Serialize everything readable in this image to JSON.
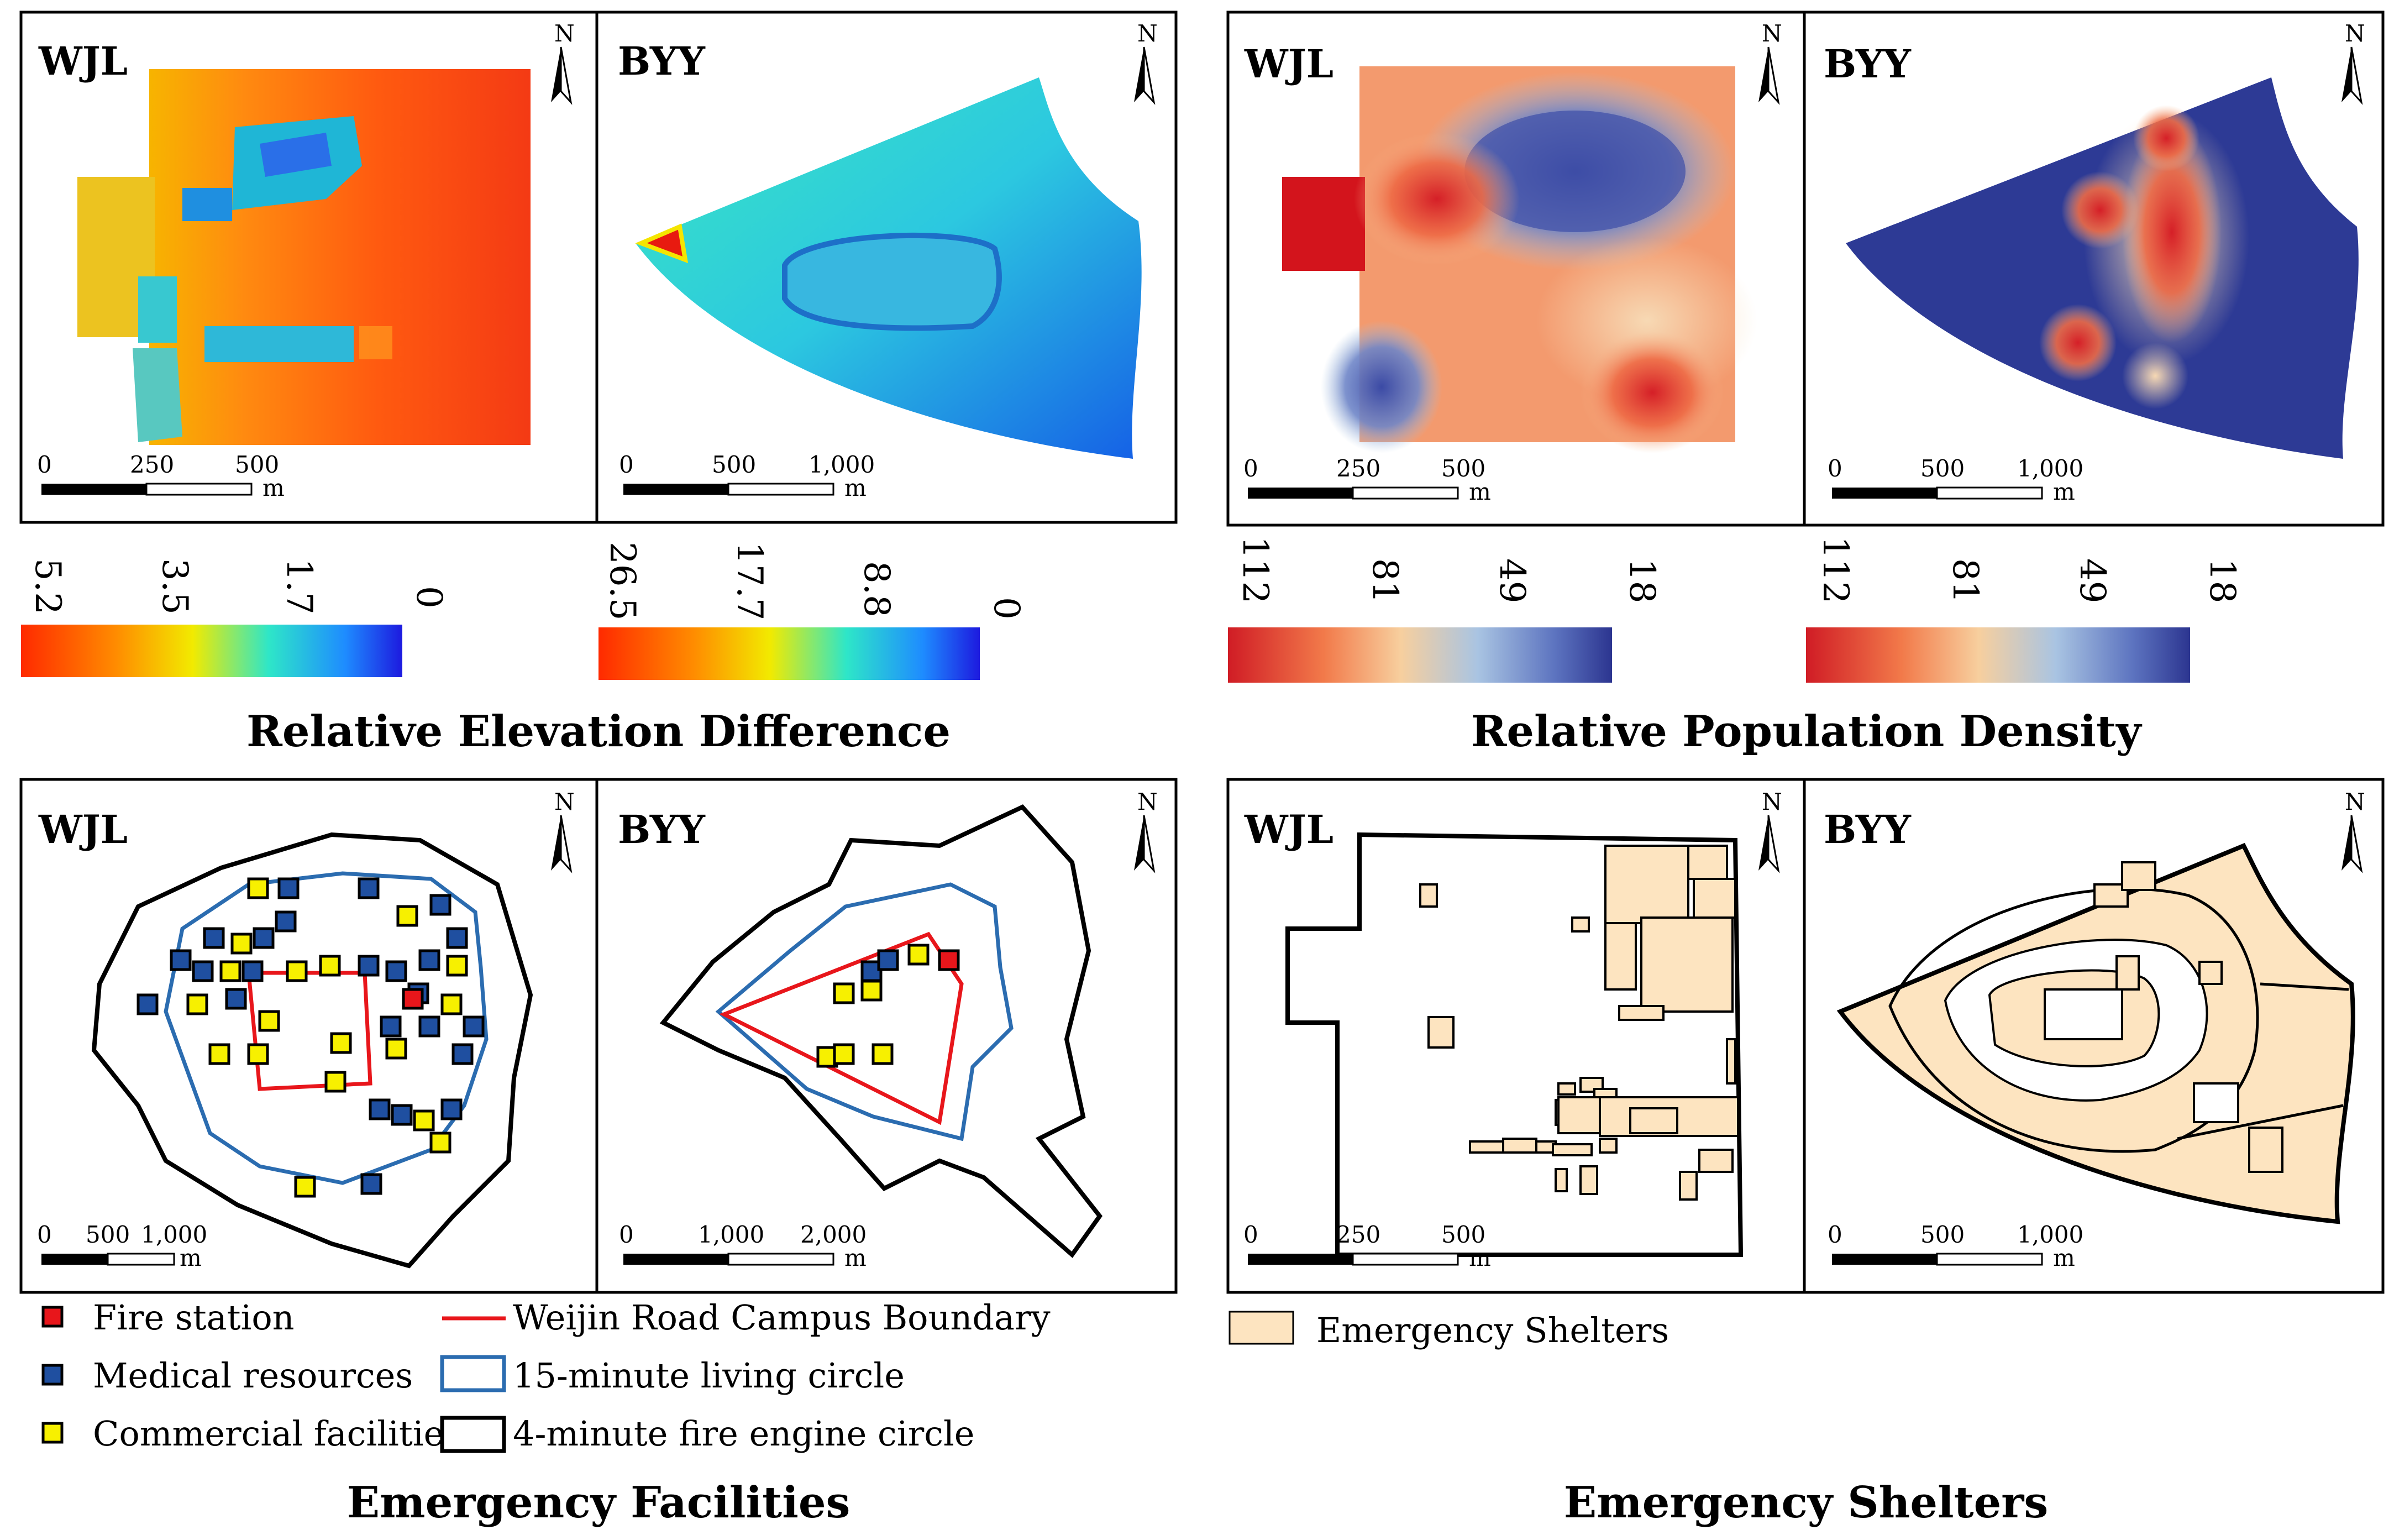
{
  "sites": {
    "a": "WJL",
    "b": "BYY"
  },
  "north": "N",
  "scale_unit": "m",
  "scales": {
    "elev_wjl": [
      "0",
      "250",
      "500"
    ],
    "elev_byy": [
      "0",
      "500",
      "1,000"
    ],
    "pop_wjl": [
      "0",
      "250",
      "500"
    ],
    "pop_byy": [
      "0",
      "500",
      "1,000"
    ],
    "fac_wjl": [
      "0",
      "500",
      "1,000"
    ],
    "fac_byy": [
      "0",
      "1,000",
      "2,000"
    ],
    "shel_wjl": [
      "0",
      "250",
      "500"
    ],
    "shel_byy": [
      "0",
      "500",
      "1,000"
    ]
  },
  "colorbars": {
    "elev_wjl": [
      "5.2",
      "3.5",
      "1.7",
      "0"
    ],
    "elev_byy": [
      "26.5",
      "17.7",
      "8.8",
      "0"
    ],
    "pop_wjl": [
      "112",
      "81",
      "49",
      "18"
    ],
    "pop_byy": [
      "112",
      "81",
      "49",
      "18"
    ]
  },
  "titles": {
    "elevation": "Relative Elevation Difference",
    "population": "Relative Population Density",
    "facilities": "Emergency Facilities",
    "shelters": "Emergency Shelters"
  },
  "legend": {
    "fire_station": "Fire station",
    "medical": "Medical resources",
    "commercial": "Commercial facilities",
    "campus": "Weijin Road Campus Boundary",
    "living15": "15-minute living circle",
    "fire4": "4-minute fire engine circle",
    "shelters": "Emergency Shelters"
  },
  "colors": {
    "fire_station": "#e8161b",
    "medical": "#1f4fa0",
    "commercial": "#f7f000",
    "campus": "#e8161b",
    "living15": "#2b6cb0",
    "fire4": "#000000",
    "shelter_fill": "#fde4c0"
  }
}
